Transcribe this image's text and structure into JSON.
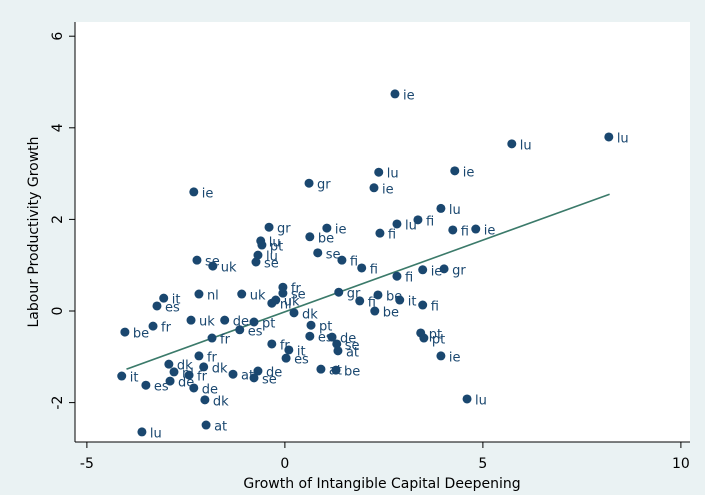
{
  "chart_data": {
    "type": "scatter",
    "x_label": "Growth of Intangible Capital Deepening",
    "y_label": "Labour Productivity Growth",
    "xlim": [
      -5.3,
      10.23
    ],
    "ylim": [
      -2.86,
      6.31
    ],
    "xticks": [
      -5,
      0,
      5,
      10
    ],
    "yticks": [
      -2,
      0,
      2,
      4,
      6
    ],
    "grid": false,
    "color": "#1a476f",
    "x": [
      2.78,
      8.18,
      5.73,
      2.37,
      4.29,
      2.25,
      0.61,
      -2.3,
      3.94,
      2.83,
      3.36,
      4.82,
      4.24,
      2.4,
      -0.4,
      1.06,
      0.63,
      -0.61,
      -0.58,
      0.83,
      -0.68,
      -0.73,
      -1.82,
      -2.22,
      4.02,
      3.48,
      2.83,
      1.44,
      1.94,
      2.35,
      2.9,
      3.48,
      2.27,
      3.43,
      3.51,
      3.94,
      4.6,
      -4.04,
      -3.33,
      -4.12,
      -3.51,
      -3.61,
      -1.99,
      -2.02,
      -2.3,
      -3.23,
      -3.06,
      -2.17,
      0.91,
      1.29,
      1.34,
      -2.17,
      -2.05,
      -1.31,
      -0.68,
      -0.78,
      -0.05,
      -0.05,
      1.36,
      1.89,
      1.19,
      1.31,
      -2.93,
      -2.8,
      -2.9,
      -2.42,
      -2.37,
      -1.84,
      -1.09,
      -0.33,
      0.66,
      0.63,
      0.23,
      0.1,
      -1.14,
      -0.23,
      -0.78,
      -1.52,
      0.03,
      -0.33
    ],
    "values": [
      4.74,
      3.8,
      3.65,
      3.03,
      3.06,
      2.69,
      2.79,
      2.6,
      2.24,
      1.9,
      1.99,
      1.79,
      1.77,
      1.7,
      1.83,
      1.81,
      1.62,
      1.53,
      1.44,
      1.27,
      1.22,
      1.07,
      0.98,
      1.11,
      0.92,
      0.9,
      0.76,
      1.11,
      0.94,
      0.35,
      0.24,
      0.13,
      0.0,
      -0.48,
      -0.59,
      -0.98,
      -1.92,
      -0.46,
      -0.33,
      -1.42,
      -1.62,
      -2.64,
      -2.49,
      -1.94,
      -1.68,
      0.11,
      0.28,
      0.37,
      -1.27,
      -1.29,
      -0.87,
      -0.98,
      -1.22,
      -1.38,
      -1.31,
      -1.46,
      0.52,
      0.39,
      0.41,
      0.22,
      -0.57,
      -0.72,
      -1.16,
      -1.33,
      -1.53,
      -1.4,
      -0.2,
      -0.59,
      0.37,
      0.17,
      -0.31,
      -0.55,
      -0.04,
      -0.85,
      -0.41,
      0.24,
      -0.24,
      -0.2,
      -1.03,
      -0.72
    ],
    "labels": [
      "ie",
      "lu",
      "lu",
      "lu",
      "ie",
      "ie",
      "gr",
      "ie",
      "lu",
      "lu",
      "fi",
      "ie",
      "fi",
      "fi",
      "gr",
      "ie",
      "be",
      "lu",
      "pt",
      "se",
      "lu",
      "se",
      "uk",
      "se",
      "gr",
      "ie",
      "fi",
      "fi",
      "fi",
      "be",
      "it",
      "fi",
      "be",
      "pt",
      "pt",
      "ie",
      "lu",
      "be",
      "fr",
      "it",
      "es",
      "lu",
      "at",
      "dk",
      "de",
      "es",
      "it",
      "nl",
      "at",
      "be",
      "at",
      "fr",
      "dk",
      "at",
      "de",
      "se",
      "fr",
      "se",
      "gr",
      "fi",
      "de",
      "se",
      "dk",
      "nl",
      "de",
      "fr",
      "uk",
      "fr",
      "uk",
      "nl",
      "pt",
      "es",
      "dk",
      "it",
      "es",
      "uk",
      "pt",
      "de",
      "es",
      "fr"
    ],
    "fit": {
      "x": [
        -4,
        8.2
      ],
      "values": [
        -1.27,
        2.55
      ],
      "color": "#3b7a6a"
    }
  }
}
